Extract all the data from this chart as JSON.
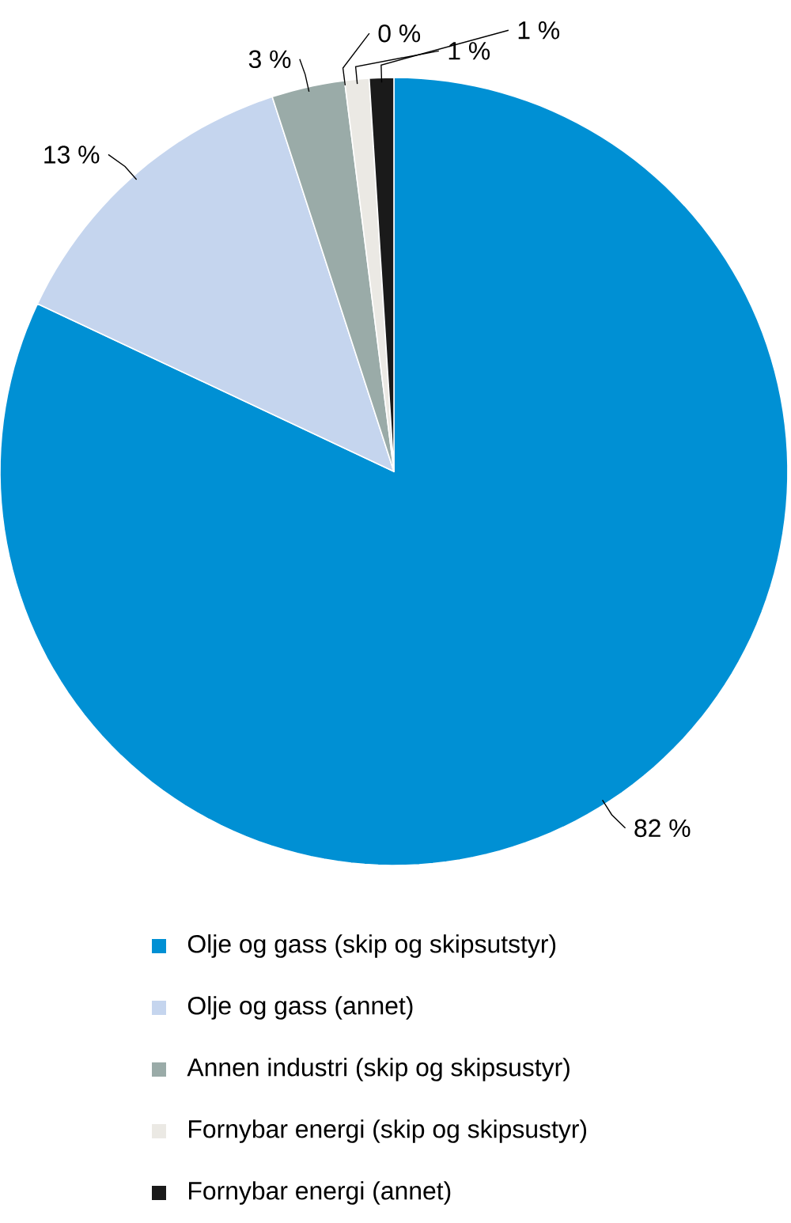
{
  "chart_data": {
    "type": "pie",
    "categories": [
      "Olje og gass (skip og skipsutstyr)",
      "Olje og gass (annet)",
      "Annen industri (skip og skipsustyr)",
      null,
      "Fornybar energi (skip og skipsustyr)",
      "Fornybar energi (annet)"
    ],
    "values": [
      82,
      13,
      3,
      0,
      1,
      1
    ],
    "colors": [
      "#0090d4",
      "#c5d5ee",
      "#9aaba8",
      "#f3eed6",
      "#ebe9e4",
      "#1a1a1a"
    ],
    "value_labels": [
      "82 %",
      "13 %",
      "3 %",
      "0 %",
      "1 %",
      "1 %"
    ],
    "legend": "bottom"
  }
}
